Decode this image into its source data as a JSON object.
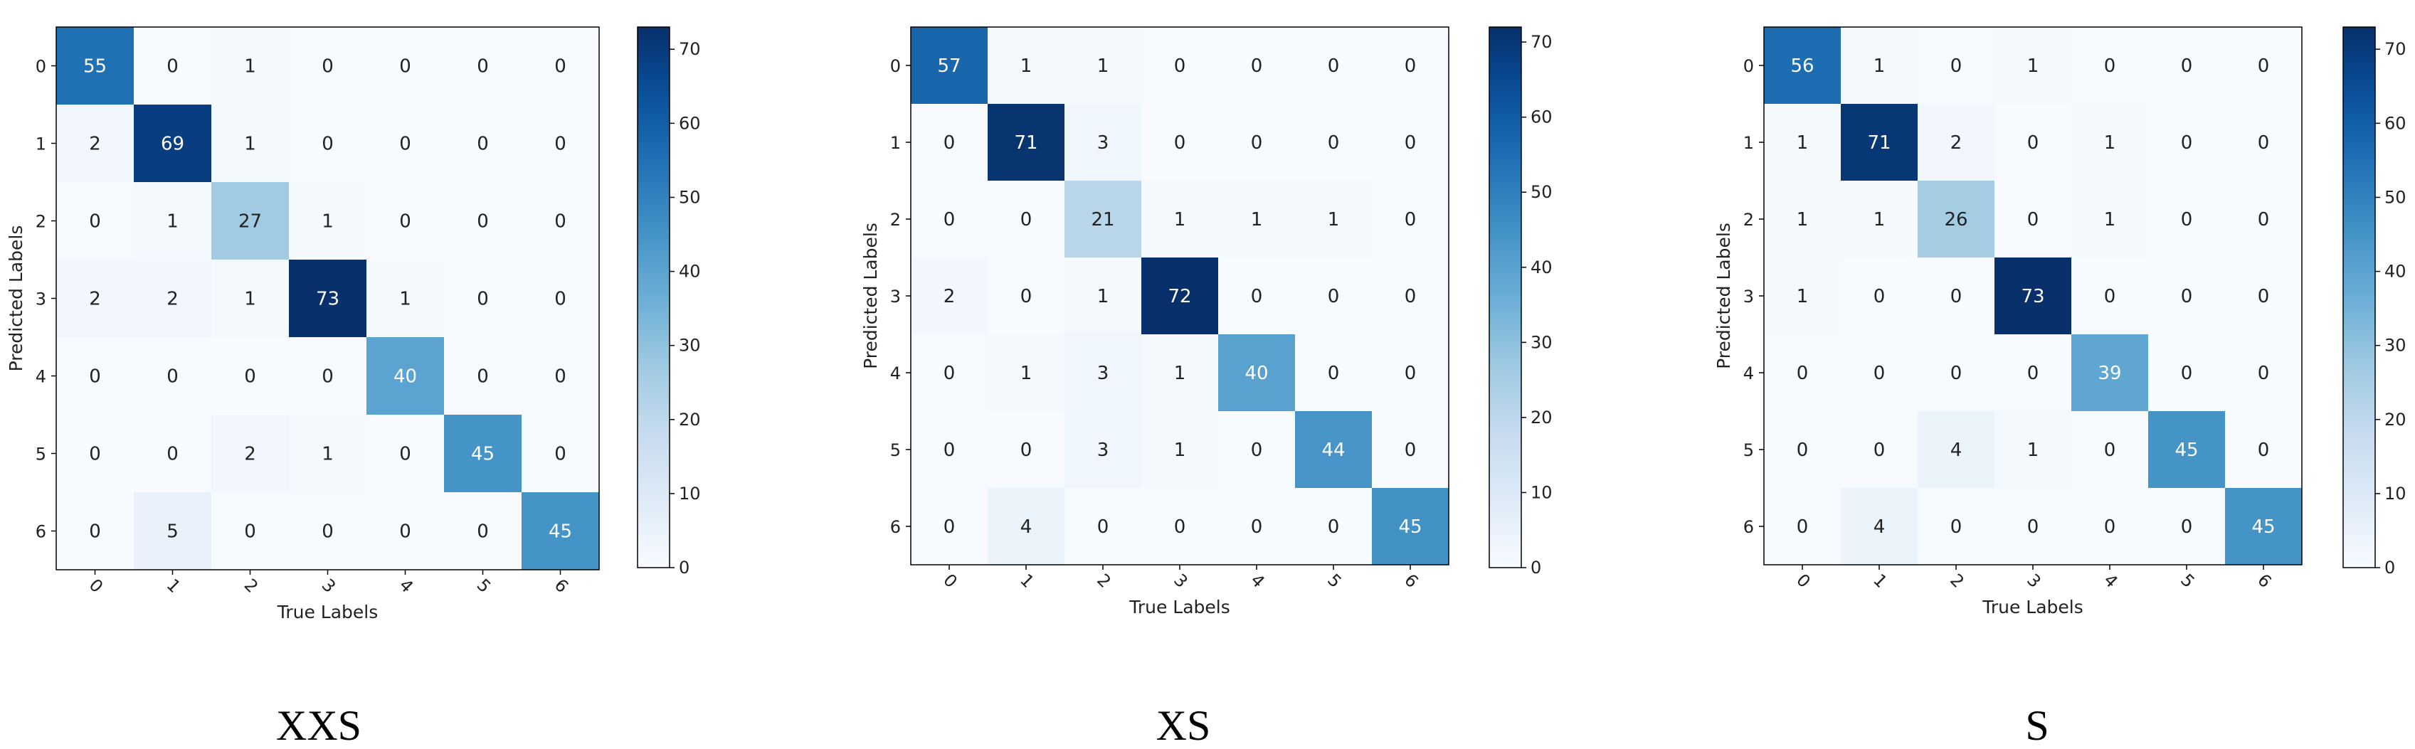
{
  "chart_data": [
    {
      "type": "heatmap",
      "caption": "XXS",
      "xlabel": "True Labels",
      "ylabel": "Predicted Labels",
      "x_ticks": [
        "0",
        "1",
        "2",
        "3",
        "4",
        "5",
        "6"
      ],
      "y_ticks": [
        "0",
        "1",
        "2",
        "3",
        "4",
        "5",
        "6"
      ],
      "matrix": [
        [
          55,
          0,
          1,
          0,
          0,
          0,
          0
        ],
        [
          2,
          69,
          1,
          0,
          0,
          0,
          0
        ],
        [
          0,
          1,
          27,
          1,
          0,
          0,
          0
        ],
        [
          2,
          2,
          1,
          73,
          1,
          0,
          0
        ],
        [
          0,
          0,
          0,
          0,
          40,
          0,
          0
        ],
        [
          0,
          0,
          2,
          1,
          0,
          45,
          0
        ],
        [
          0,
          5,
          0,
          0,
          0,
          0,
          45
        ]
      ],
      "colorbar": {
        "min": 0,
        "max": 73,
        "ticks": [
          0,
          10,
          20,
          30,
          40,
          50,
          60,
          70
        ]
      }
    },
    {
      "type": "heatmap",
      "caption": "XS",
      "xlabel": "True Labels",
      "ylabel": "Predicted Labels",
      "x_ticks": [
        "0",
        "1",
        "2",
        "3",
        "4",
        "5",
        "6"
      ],
      "y_ticks": [
        "0",
        "1",
        "2",
        "3",
        "4",
        "5",
        "6"
      ],
      "matrix": [
        [
          57,
          1,
          1,
          0,
          0,
          0,
          0
        ],
        [
          0,
          71,
          3,
          0,
          0,
          0,
          0
        ],
        [
          0,
          0,
          21,
          1,
          1,
          1,
          0
        ],
        [
          2,
          0,
          1,
          72,
          0,
          0,
          0
        ],
        [
          0,
          1,
          3,
          1,
          40,
          0,
          0
        ],
        [
          0,
          0,
          3,
          1,
          0,
          44,
          0
        ],
        [
          0,
          4,
          0,
          0,
          0,
          0,
          45
        ]
      ],
      "colorbar": {
        "min": 0,
        "max": 72,
        "ticks": [
          0,
          10,
          20,
          30,
          40,
          50,
          60,
          70
        ]
      }
    },
    {
      "type": "heatmap",
      "caption": "S",
      "xlabel": "True Labels",
      "ylabel": "Predicted Labels",
      "x_ticks": [
        "0",
        "1",
        "2",
        "3",
        "4",
        "5",
        "6"
      ],
      "y_ticks": [
        "0",
        "1",
        "2",
        "3",
        "4",
        "5",
        "6"
      ],
      "matrix": [
        [
          56,
          1,
          0,
          1,
          0,
          0,
          0
        ],
        [
          1,
          71,
          2,
          0,
          1,
          0,
          0
        ],
        [
          1,
          1,
          26,
          0,
          1,
          0,
          0
        ],
        [
          1,
          0,
          0,
          73,
          0,
          0,
          0
        ],
        [
          0,
          0,
          0,
          0,
          39,
          0,
          0
        ],
        [
          0,
          0,
          4,
          1,
          0,
          45,
          0
        ],
        [
          0,
          4,
          0,
          0,
          0,
          0,
          45
        ]
      ],
      "colorbar": {
        "min": 0,
        "max": 73,
        "ticks": [
          0,
          10,
          20,
          30,
          40,
          50,
          60,
          70
        ]
      }
    }
  ],
  "colormap": "Blues"
}
